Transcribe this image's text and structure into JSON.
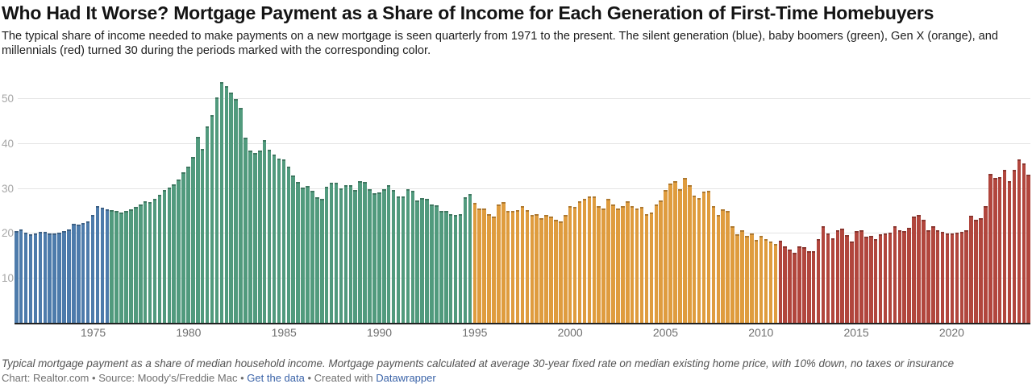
{
  "header": {
    "title": "Who Had It Worse? Mortgage Payment as a Share of Income for Each Generation of First-Time Homebuyers",
    "subtitle": "The typical share of income needed to make payments on a new mortgage is seen quarterly from 1971 to the present. The silent generation (blue), baby boomers (green), Gen X (orange), and millennials (red) turned 30 during the periods marked with the corresponding color."
  },
  "chart_data": {
    "type": "bar",
    "frequency": "quarterly",
    "start_year": 1971,
    "start_quarter": "Q1",
    "end_year": 2024,
    "end_quarter": "Q1",
    "ylim": [
      0,
      55
    ],
    "y_axis_ticks": [
      10,
      20,
      30,
      40,
      50
    ],
    "x_axis_ticks": [
      1975,
      1980,
      1985,
      1990,
      1995,
      2000,
      2005,
      2010,
      2015,
      2020
    ],
    "grid": true,
    "baseline_color": "#212121",
    "gridline_color": "#e4e4e4",
    "generations": [
      {
        "name": "Silent generation",
        "color_name": "blue",
        "color": "#4d7bab",
        "start": "1971 Q1",
        "values": [
          20.6,
          20.9,
          20.2,
          19.9,
          20.1,
          20.4,
          20.5,
          20.1,
          20.0,
          20.3,
          20.6,
          21.0,
          22.3,
          22.1,
          22.4,
          22.7,
          24.2,
          26.2,
          25.8,
          25.4
        ]
      },
      {
        "name": "Baby boomers",
        "color_name": "green",
        "color": "#519a7d",
        "start": "1976 Q1",
        "values": [
          25.3,
          25.0,
          24.8,
          25.1,
          25.4,
          26.0,
          26.6,
          27.2,
          27.0,
          27.8,
          28.6,
          29.8,
          30.3,
          31.0,
          32.0,
          33.6,
          35.0,
          37.0,
          41.5,
          38.9,
          43.9,
          46.4,
          50.4,
          53.8,
          52.9,
          51.4,
          49.9,
          48.1,
          41.3,
          38.5,
          37.9,
          38.5,
          40.9,
          38.7,
          37.7,
          36.7,
          36.5,
          35.0,
          33.0,
          31.5,
          30.2,
          30.7,
          29.6,
          28.1,
          27.7,
          30.5,
          31.4,
          31.4,
          30.1,
          30.8,
          30.9,
          29.8,
          31.7,
          31.5,
          29.9,
          29.0,
          29.2,
          29.9,
          30.8,
          29.8,
          28.3,
          28.3,
          29.9,
          29.6,
          27.5,
          28.0,
          27.8,
          26.5,
          26.3,
          25.0,
          25.1,
          24.4,
          24.2,
          24.4,
          28.1,
          28.9
        ]
      },
      {
        "name": "Gen X",
        "color_name": "orange",
        "color": "#df9c3e",
        "start": "1995 Q1",
        "values": [
          26.8,
          25.6,
          25.7,
          24.3,
          23.8,
          26.6,
          27.1,
          25.1,
          25.0,
          25.3,
          26.2,
          25.3,
          24.1,
          24.4,
          23.5,
          24.1,
          23.8,
          23.1,
          22.8,
          24.1,
          26.2,
          25.9,
          27.2,
          27.7,
          28.3,
          28.3,
          26.2,
          25.7,
          27.7,
          26.6,
          25.7,
          26.2,
          27.2,
          26.2,
          25.6,
          25.9,
          24.4,
          24.7,
          26.6,
          27.4,
          29.8,
          31.2,
          31.7,
          29.9,
          32.4,
          30.9,
          28.4,
          28.0,
          29.4,
          29.6,
          26.2,
          24.1,
          25.4,
          25.0,
          21.6,
          19.9,
          20.8,
          19.5,
          20.1,
          18.6,
          19.6,
          18.9,
          18.2,
          17.7
        ]
      },
      {
        "name": "Millennials",
        "color_name": "red",
        "color": "#b1463d",
        "start": "2011 Q1",
        "values": [
          18.4,
          17.2,
          16.5,
          15.8,
          17.2,
          17.0,
          16.2,
          16.2,
          18.9,
          21.6,
          20.1,
          19.0,
          20.8,
          21.1,
          19.7,
          18.3,
          20.6,
          20.7,
          19.4,
          19.6,
          18.8,
          19.8,
          20.0,
          20.2,
          21.6,
          20.8,
          20.6,
          21.3,
          23.8,
          24.1,
          23.1,
          20.8,
          21.7,
          20.7,
          20.5,
          20.1,
          20.1,
          20.2,
          20.5,
          20.8,
          24.0,
          23.2,
          23.5,
          26.2,
          33.4,
          32.4,
          32.6,
          34.3,
          31.7,
          34.3,
          36.5,
          35.6,
          33.2
        ]
      }
    ]
  },
  "footer": {
    "note": "Typical mortgage payment as a share of median household income. Mortgage payments calculated at average 30-year fixed rate on median existing home price, with 10% down, no taxes or insurance",
    "credit_chart": "Chart: Realtor.com",
    "separator": "•",
    "credit_source": "Source: Moody's/Freddie Mac",
    "link_get_data": "Get the data",
    "created_with": "Created with",
    "link_datawrapper": "Datawrapper"
  }
}
